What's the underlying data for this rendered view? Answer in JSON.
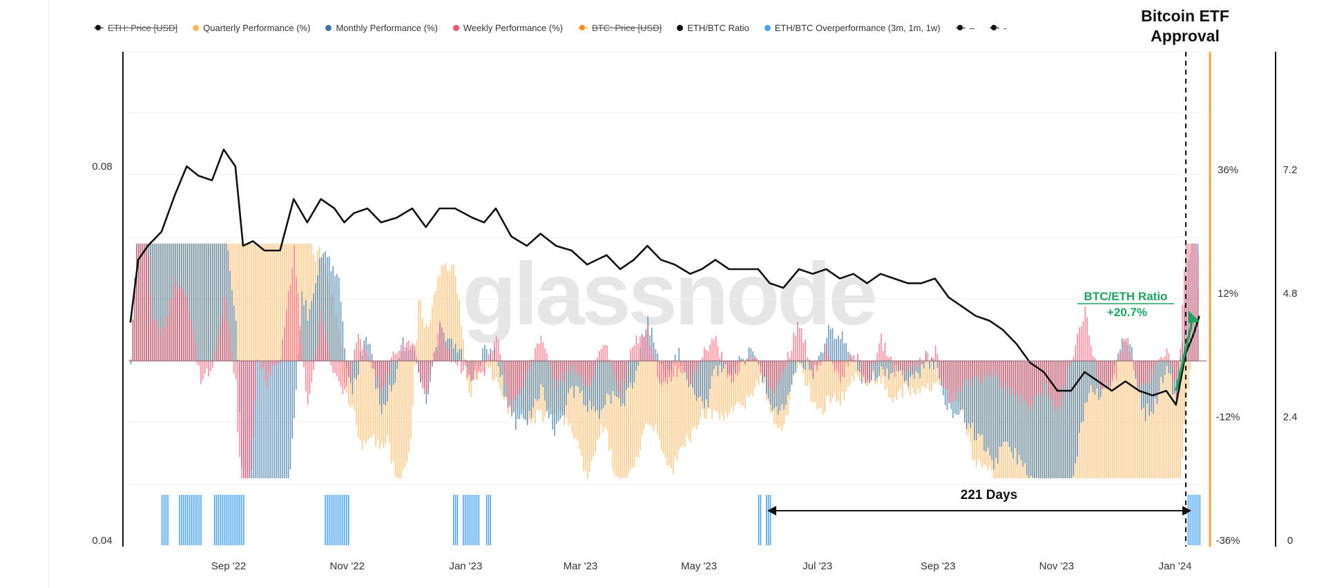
{
  "legend": [
    {
      "label": "ETH: Price [USD]",
      "color": "#111111",
      "struck": true
    },
    {
      "label": "Quarterly Performance (%)",
      "color": "#f9b65c",
      "struck": false
    },
    {
      "label": "Monthly Performance (%)",
      "color": "#3b78a8",
      "struck": false
    },
    {
      "label": "Weekly Performance (%)",
      "color": "#f2546d",
      "struck": false
    },
    {
      "label": "BTC: Price [USD]",
      "color": "#f7931a",
      "struck": true
    },
    {
      "label": "ETH/BTC Ratio",
      "color": "#111111",
      "struck": false
    },
    {
      "label": "ETH/BTC Overperformance (3m, 1m, 1w)",
      "color": "#4aa3f0",
      "struck": false
    },
    {
      "label": "–",
      "color": "#111111",
      "struck": false
    },
    {
      "label": "-",
      "color": "#111111",
      "struck": false
    }
  ],
  "annotations": {
    "etf_title_line1": "Bitcoin ETF",
    "etf_title_line2": "Approval",
    "ratio_line1": "BTC/ETH Ratio",
    "ratio_line2": "+20.7%",
    "days": "221 Days",
    "watermark": "glassnode"
  },
  "colors": {
    "quarterly": "#f9b65c",
    "monthly": "#3b78a8",
    "weekly": "#f2546d",
    "overperf": "#4aa3f0",
    "ratio": "#111111",
    "etf_line": "#f7a53b",
    "ratio_annotation": "#1aa65f"
  },
  "chart_data": {
    "type": "line",
    "x_ticks": [
      "Sep '22",
      "Nov '22",
      "Jan '23",
      "Mar '23",
      "May '23",
      "Jul '23",
      "Sep '23",
      "Nov '23",
      "Jan '24"
    ],
    "left_axis": {
      "ticks": [
        "0.08",
        "0.04"
      ],
      "range": [
        0.04,
        0.08
      ]
    },
    "pct_axis": {
      "ticks": [
        "36%",
        "12%",
        "-12%",
        "-36%"
      ],
      "range": [
        -36,
        36
      ]
    },
    "right_axis": {
      "ticks": [
        "7.2",
        "4.8",
        "2.4",
        "0"
      ],
      "range": [
        0,
        7.2
      ]
    },
    "eth_btc_ratio": {
      "x": [
        "2022-07-16",
        "2022-07-20",
        "2022-07-25",
        "2022-08-01",
        "2022-08-08",
        "2022-08-14",
        "2022-08-20",
        "2022-08-27",
        "2022-09-02",
        "2022-09-08",
        "2022-09-12",
        "2022-09-17",
        "2022-09-23",
        "2022-10-01",
        "2022-10-08",
        "2022-10-15",
        "2022-10-22",
        "2022-10-29",
        "2022-11-03",
        "2022-11-08",
        "2022-11-15",
        "2022-11-22",
        "2022-11-30",
        "2022-12-08",
        "2022-12-15",
        "2022-12-22",
        "2022-12-30",
        "2023-01-08",
        "2023-01-14",
        "2023-01-20",
        "2023-01-28",
        "2023-02-05",
        "2023-02-12",
        "2023-02-20",
        "2023-02-28",
        "2023-03-08",
        "2023-03-13",
        "2023-03-18",
        "2023-03-25",
        "2023-04-01",
        "2023-04-08",
        "2023-04-15",
        "2023-04-22",
        "2023-04-30",
        "2023-05-06",
        "2023-05-13",
        "2023-05-20",
        "2023-05-28",
        "2023-06-04",
        "2023-06-10",
        "2023-06-17",
        "2023-06-25",
        "2023-07-02",
        "2023-07-09",
        "2023-07-16",
        "2023-07-23",
        "2023-07-30",
        "2023-08-06",
        "2023-08-13",
        "2023-08-20",
        "2023-08-27",
        "2023-09-03",
        "2023-09-10",
        "2023-09-17",
        "2023-09-24",
        "2023-10-01",
        "2023-10-08",
        "2023-10-15",
        "2023-10-22",
        "2023-10-29",
        "2023-11-05",
        "2023-11-12",
        "2023-11-19",
        "2023-11-26",
        "2023-12-03",
        "2023-12-10",
        "2023-12-17",
        "2023-12-24",
        "2023-12-31",
        "2024-01-05",
        "2024-01-10",
        "2024-01-14",
        "2024-01-17"
      ],
      "y": [
        0.0633,
        0.07,
        0.0715,
        0.073,
        0.077,
        0.08,
        0.079,
        0.0785,
        0.0818,
        0.08,
        0.0715,
        0.072,
        0.071,
        0.071,
        0.0765,
        0.074,
        0.0765,
        0.0755,
        0.074,
        0.075,
        0.0755,
        0.074,
        0.0745,
        0.0755,
        0.0735,
        0.0755,
        0.0755,
        0.0745,
        0.074,
        0.0755,
        0.0725,
        0.0715,
        0.0728,
        0.0715,
        0.071,
        0.0695,
        0.07,
        0.0705,
        0.069,
        0.07,
        0.0715,
        0.07,
        0.0695,
        0.0685,
        0.069,
        0.07,
        0.069,
        0.069,
        0.069,
        0.0675,
        0.067,
        0.069,
        0.0685,
        0.069,
        0.068,
        0.0685,
        0.0675,
        0.0685,
        0.068,
        0.0675,
        0.0675,
        0.068,
        0.066,
        0.065,
        0.064,
        0.0635,
        0.0625,
        0.061,
        0.059,
        0.058,
        0.056,
        0.056,
        0.058,
        0.057,
        0.056,
        0.057,
        0.056,
        0.0555,
        0.056,
        0.0545,
        0.06,
        0.062,
        0.064
      ]
    },
    "etf_approval_date": "2024-01-10",
    "days_span": {
      "start": "2023-06-07",
      "end": "2024-01-12",
      "label": "221 Days"
    },
    "ratio_change_pct": 20.7,
    "overperformance_periods": [
      [
        "2022-08-01",
        "2022-08-04"
      ],
      [
        "2022-08-10",
        "2022-08-21"
      ],
      [
        "2022-08-28",
        "2022-09-12"
      ],
      [
        "2022-10-24",
        "2022-11-05"
      ],
      [
        "2022-12-29",
        "2022-12-31"
      ],
      [
        "2023-01-03",
        "2023-01-11"
      ],
      [
        "2023-01-15",
        "2023-01-17"
      ],
      [
        "2023-06-04",
        "2023-06-05"
      ],
      [
        "2023-06-08",
        "2023-06-10"
      ],
      [
        "2024-01-11",
        "2024-01-17"
      ]
    ]
  }
}
